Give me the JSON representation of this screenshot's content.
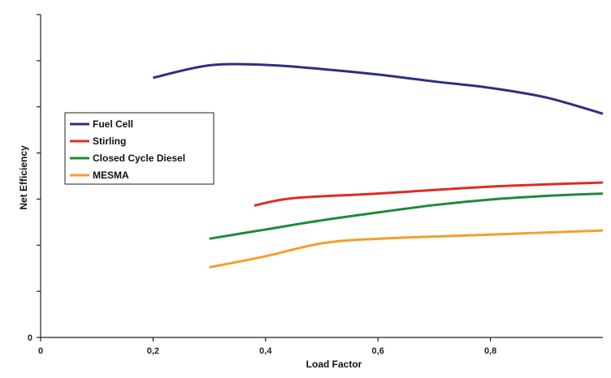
{
  "chart_data": {
    "type": "line",
    "title": "",
    "xlabel": "Load Factor",
    "ylabel": "Net Efficiency",
    "xlim": [
      0,
      1.0
    ],
    "ylim": [
      0,
      7
    ],
    "x_ticks": [
      0,
      0.2,
      0.4,
      0.6,
      0.8
    ],
    "x_tick_labels": [
      "0",
      "0,2",
      "0,4",
      "0,6",
      "0,8"
    ],
    "y_ticks": [
      0,
      1,
      2,
      3,
      4,
      5,
      6,
      7
    ],
    "y_tick_labels": [
      "0",
      "",
      "",
      "",
      "",
      "",
      "",
      ""
    ],
    "grid": false,
    "legend_position": "left",
    "series": [
      {
        "name": "Fuel Cell",
        "color": "#2e2f7f",
        "x": [
          0.2,
          0.3,
          0.4,
          0.5,
          0.6,
          0.7,
          0.8,
          0.9,
          1.0
        ],
        "y": [
          5.63,
          5.9,
          5.91,
          5.82,
          5.7,
          5.55,
          5.41,
          5.2,
          4.85
        ]
      },
      {
        "name": "Stirling",
        "color": "#e02b25",
        "x": [
          0.38,
          0.45,
          0.6,
          0.8,
          1.0
        ],
        "y": [
          2.86,
          3.02,
          3.12,
          3.27,
          3.36
        ]
      },
      {
        "name": "Closed Cycle Diesel",
        "color": "#1f8a3a",
        "x": [
          0.3,
          0.4,
          0.5,
          0.6,
          0.7,
          0.8,
          0.9,
          1.0
        ],
        "y": [
          2.14,
          2.34,
          2.54,
          2.71,
          2.87,
          2.99,
          3.07,
          3.12
        ]
      },
      {
        "name": "MESMA",
        "color": "#f2a02b",
        "x": [
          0.3,
          0.4,
          0.5,
          0.6,
          0.8,
          1.0
        ],
        "y": [
          1.52,
          1.76,
          2.04,
          2.14,
          2.23,
          2.32
        ]
      }
    ]
  }
}
